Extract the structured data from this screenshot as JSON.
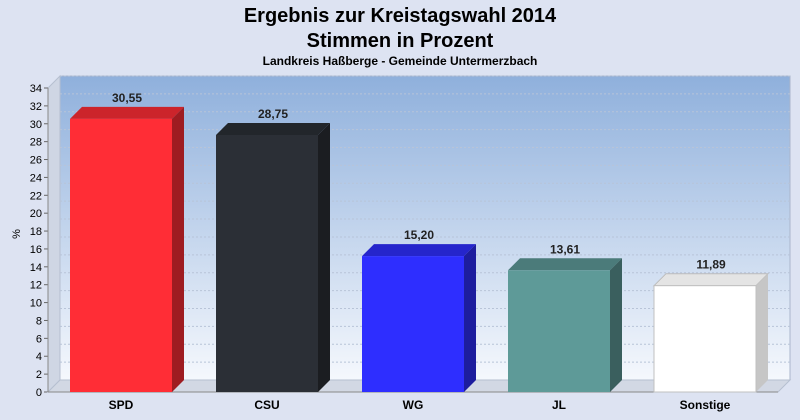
{
  "chart_data": {
    "type": "bar",
    "title": "Ergebnis zur Kreistagswahl 2014",
    "subtitle": "Stimmen in Prozent",
    "caption": "Landkreis Haßberge - Gemeinde Untermerzbach",
    "ylabel": "%",
    "xlabel": "",
    "ylim": [
      0,
      34
    ],
    "ytick_step": 2,
    "grid": true,
    "categories": [
      "SPD",
      "CSU",
      "WG",
      "JL",
      "Sonstige"
    ],
    "values": [
      30.55,
      28.75,
      15.2,
      13.61,
      11.89
    ],
    "value_labels": [
      "30,55",
      "28,75",
      "15,20",
      "13,61",
      "11,89"
    ],
    "colors": [
      "#ff2d36",
      "#2b2f36",
      "#2e2eff",
      "#5e9a98",
      "#ffffff"
    ]
  }
}
